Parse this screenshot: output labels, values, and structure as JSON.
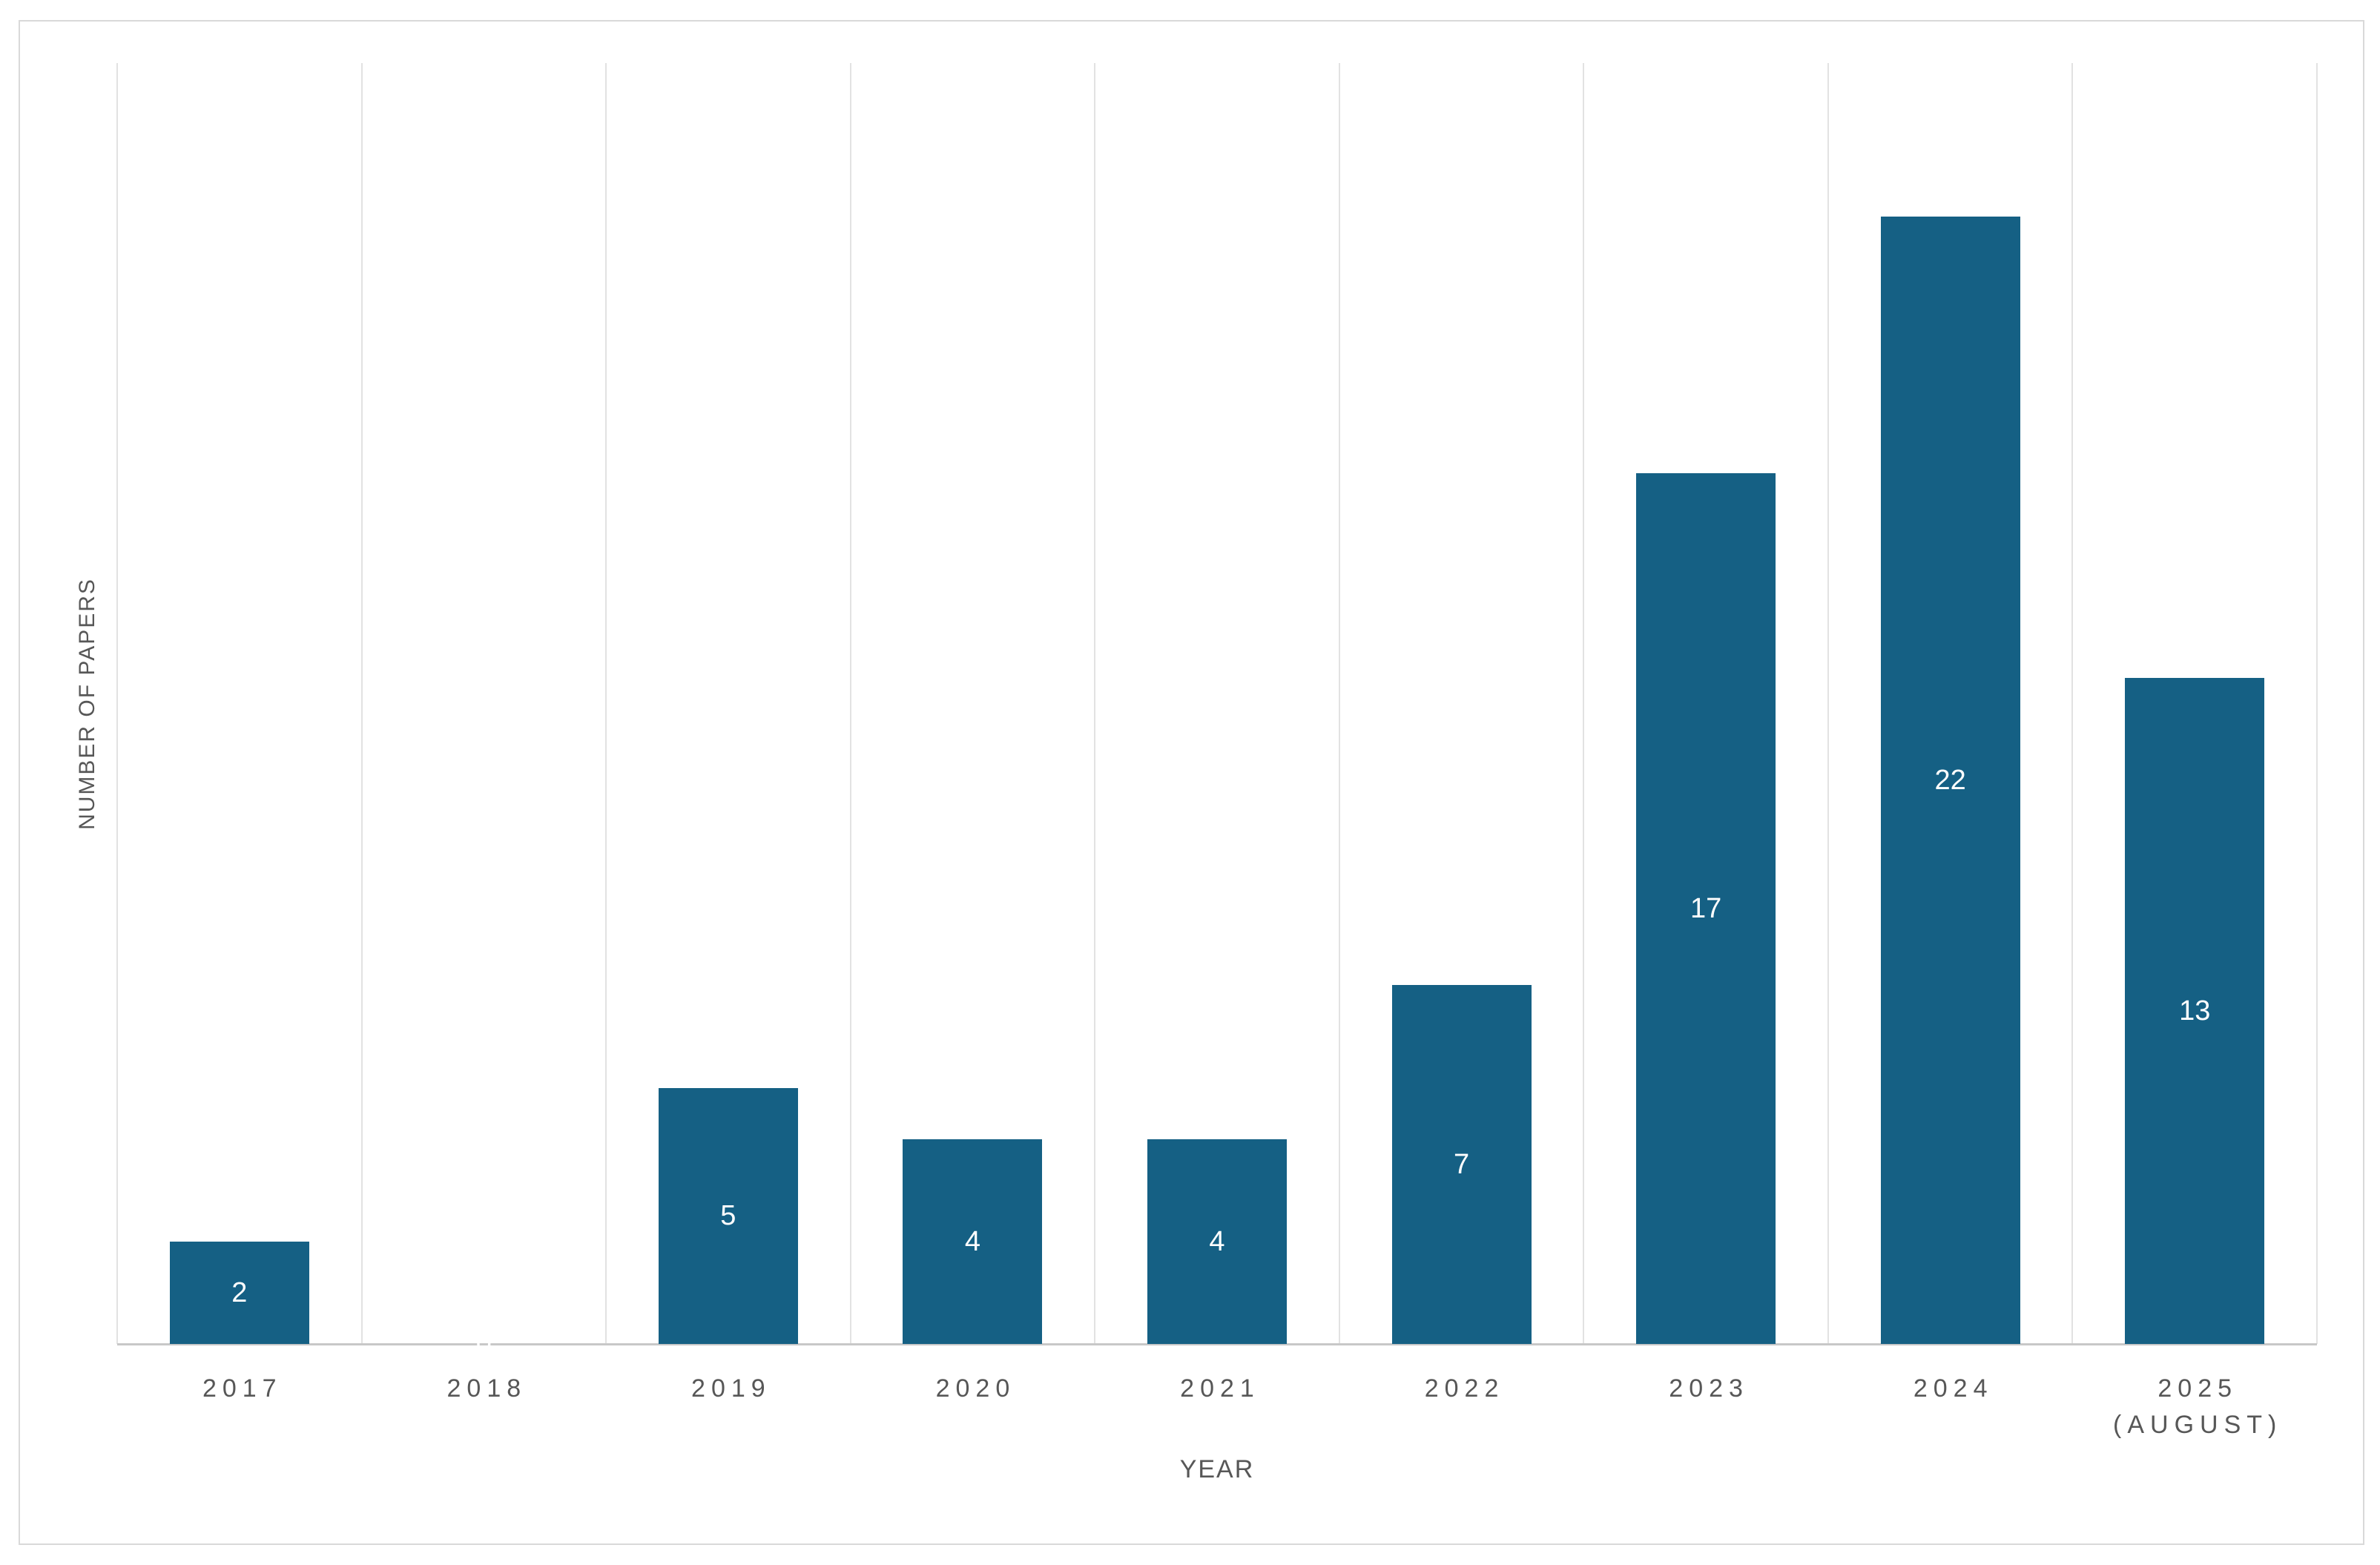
{
  "chart_data": {
    "type": "bar",
    "title": "",
    "xlabel": "YEAR",
    "ylabel": "NUMBER OF PAPERS",
    "categories": [
      "2017",
      "2018",
      "2019",
      "2020",
      "2021",
      "2022",
      "2023",
      "2024",
      "2025\n(AUGUST)"
    ],
    "values": [
      2,
      0,
      5,
      4,
      4,
      7,
      17,
      22,
      13
    ],
    "data_labels": [
      "2",
      "0",
      "5",
      "4",
      "4",
      "7",
      "17",
      "22",
      "13"
    ],
    "ylim": [
      0,
      25
    ],
    "yticks_visible": false,
    "grid": "vertical category separators only",
    "legend_position": "none",
    "colors": {
      "bar": "#156084",
      "data_label": "#ffffff",
      "axis_text": "#575757",
      "gridline": "#e2e2e2",
      "axis_line": "#c8c8c8",
      "canvas_border": "#d9d9d9",
      "background": "#ffffff"
    }
  }
}
